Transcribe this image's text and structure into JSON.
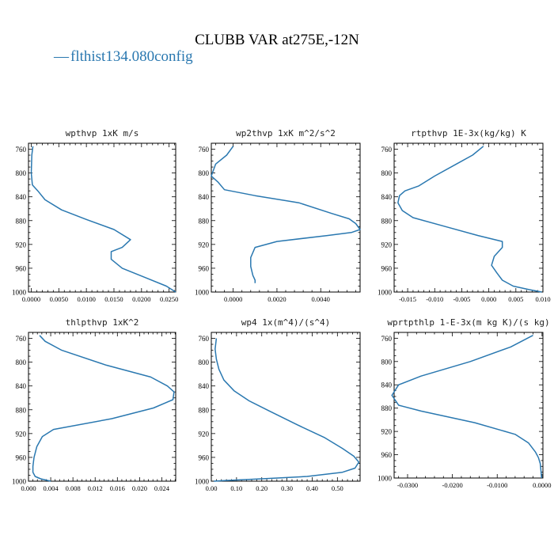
{
  "figure": {
    "title": "CLUBB VAR at275E,-12N",
    "legend": {
      "label": "flthist134.080config",
      "marker": "—",
      "color": "#2a78b0"
    },
    "line_color": "#2a78b0"
  },
  "chart_data": [
    {
      "type": "line",
      "title": "wpthvp  1xK m/s",
      "xlim": [
        -0.0005,
        0.0262
      ],
      "ylim": [
        1000,
        750
      ],
      "y_inverted": true,
      "xticks": [
        0.0,
        0.005,
        0.01,
        0.015,
        0.02,
        0.025
      ],
      "xtick_labels": [
        "0.0000",
        "0.0050",
        "0.0100",
        "0.0150",
        "0.0200",
        "0.0250"
      ],
      "yticks": [
        760,
        800,
        840,
        880,
        920,
        960,
        1000
      ],
      "ytick_labels": [
        "760",
        "800",
        "840",
        "880",
        "920",
        "960",
        "1000"
      ],
      "series": [
        {
          "x": [
            0.0003,
            0.0001,
            0.0,
            0.0002,
            0.0012,
            0.0025,
            0.0055,
            0.01,
            0.015,
            0.018,
            0.0165,
            0.0145,
            0.0145,
            0.0165,
            0.0205,
            0.0245,
            0.0262
          ],
          "y": [
            755,
            770,
            800,
            820,
            830,
            845,
            862,
            878,
            895,
            912,
            925,
            932,
            945,
            960,
            975,
            990,
            1000
          ]
        }
      ]
    },
    {
      "type": "line",
      "title": "wp2thvp  1xK m^2/s^2",
      "xlim": [
        -0.001,
        0.0058
      ],
      "ylim": [
        1000,
        750
      ],
      "y_inverted": true,
      "xticks": [
        0.0,
        0.002,
        0.004
      ],
      "xtick_labels": [
        "0.0000",
        "0.0020",
        "0.0040"
      ],
      "series": [
        {
          "x": [
            0.0,
            -0.0003,
            -0.0008,
            -0.001,
            -0.0007,
            -0.0004,
            0.001,
            0.003,
            0.0045,
            0.0053,
            0.0056,
            0.0058,
            0.0054,
            0.0043,
            0.002,
            0.001,
            0.0008,
            0.0008,
            0.0009,
            0.001,
            0.001
          ],
          "y": [
            755,
            770,
            785,
            805,
            815,
            828,
            838,
            850,
            868,
            877,
            885,
            895,
            900,
            905,
            915,
            925,
            942,
            957,
            972,
            980,
            985
          ]
        }
      ]
    },
    {
      "type": "line",
      "title": "rtpthvp  1E-3x(kg/kg) K",
      "xlim": [
        -0.0175,
        0.01
      ],
      "ylim": [
        1000,
        750
      ],
      "y_inverted": true,
      "xticks": [
        -0.015,
        -0.01,
        -0.005,
        0.0,
        0.005,
        0.01
      ],
      "xtick_labels": [
        "-0.015",
        "-0.010",
        "-0.005",
        "0.000",
        "0.005",
        "0.010"
      ],
      "series": [
        {
          "x": [
            -0.001,
            -0.003,
            -0.006,
            -0.01,
            -0.013,
            -0.0155,
            -0.0165,
            -0.0168,
            -0.016,
            -0.014,
            -0.008,
            -0.002,
            0.0025,
            0.0025,
            0.001,
            0.0005,
            0.0015,
            0.0025,
            0.0045,
            0.0075,
            0.0098
          ],
          "y": [
            755,
            770,
            785,
            805,
            822,
            830,
            838,
            850,
            863,
            875,
            890,
            905,
            915,
            925,
            940,
            955,
            968,
            980,
            990,
            996,
            1000
          ]
        }
      ]
    },
    {
      "type": "line",
      "title": "thlpthvp  1xK^2",
      "xlim": [
        0.0,
        0.0265
      ],
      "ylim": [
        1000,
        750
      ],
      "y_inverted": true,
      "xticks": [
        0.0,
        0.004,
        0.008,
        0.012,
        0.016,
        0.02,
        0.024
      ],
      "xtick_labels": [
        "0.000",
        "0.004",
        "0.008",
        "0.012",
        "0.016",
        "0.020",
        "0.024"
      ],
      "series": [
        {
          "x": [
            0.002,
            0.003,
            0.006,
            0.014,
            0.022,
            0.025,
            0.0262,
            0.026,
            0.0225,
            0.015,
            0.0045,
            0.0025,
            0.0015,
            0.001,
            0.0008,
            0.0008,
            0.0012,
            0.0022,
            0.004
          ],
          "y": [
            755,
            765,
            780,
            805,
            825,
            840,
            850,
            863,
            877,
            895,
            913,
            925,
            942,
            960,
            975,
            985,
            992,
            996,
            1000
          ]
        }
      ]
    },
    {
      "type": "line",
      "title": "wp4  1x(m^4)/(s^4)",
      "xlim": [
        0.0,
        0.59
      ],
      "ylim": [
        1000,
        750
      ],
      "y_inverted": true,
      "xticks": [
        0.0,
        0.1,
        0.2,
        0.3,
        0.4,
        0.5
      ],
      "xtick_labels": [
        "0.00",
        "0.10",
        "0.20",
        "0.30",
        "0.40",
        "0.50"
      ],
      "series": [
        {
          "x": [
            0.02,
            0.015,
            0.02,
            0.03,
            0.05,
            0.09,
            0.15,
            0.23,
            0.34,
            0.45,
            0.52,
            0.565,
            0.585,
            0.57,
            0.52,
            0.38,
            0.2,
            0.05,
            0.01
          ],
          "y": [
            760,
            778,
            795,
            812,
            830,
            848,
            865,
            882,
            905,
            927,
            945,
            958,
            968,
            978,
            985,
            992,
            996,
            999,
            1000
          ]
        }
      ]
    },
    {
      "type": "line",
      "title": "wprtpthlp  1-E-3x(m kg K)/(s kg)",
      "xlim": [
        -0.033,
        0.0002
      ],
      "ylim": [
        1000,
        750
      ],
      "y_inverted": true,
      "xticks": [
        -0.03,
        -0.02,
        -0.01,
        0.0
      ],
      "xtick_labels": [
        "-0.0300",
        "-0.0200",
        "-0.0100",
        "0.0000"
      ],
      "series": [
        {
          "x": [
            -0.002,
            -0.007,
            -0.016,
            -0.027,
            -0.032,
            -0.0335,
            -0.032,
            -0.027,
            -0.015,
            -0.006,
            -0.003,
            -0.0015,
            -0.0008,
            -0.0004,
            -0.0002,
            -0.0001
          ],
          "y": [
            755,
            775,
            800,
            825,
            840,
            858,
            875,
            885,
            905,
            925,
            940,
            955,
            965,
            975,
            990,
            1000
          ]
        }
      ]
    }
  ]
}
